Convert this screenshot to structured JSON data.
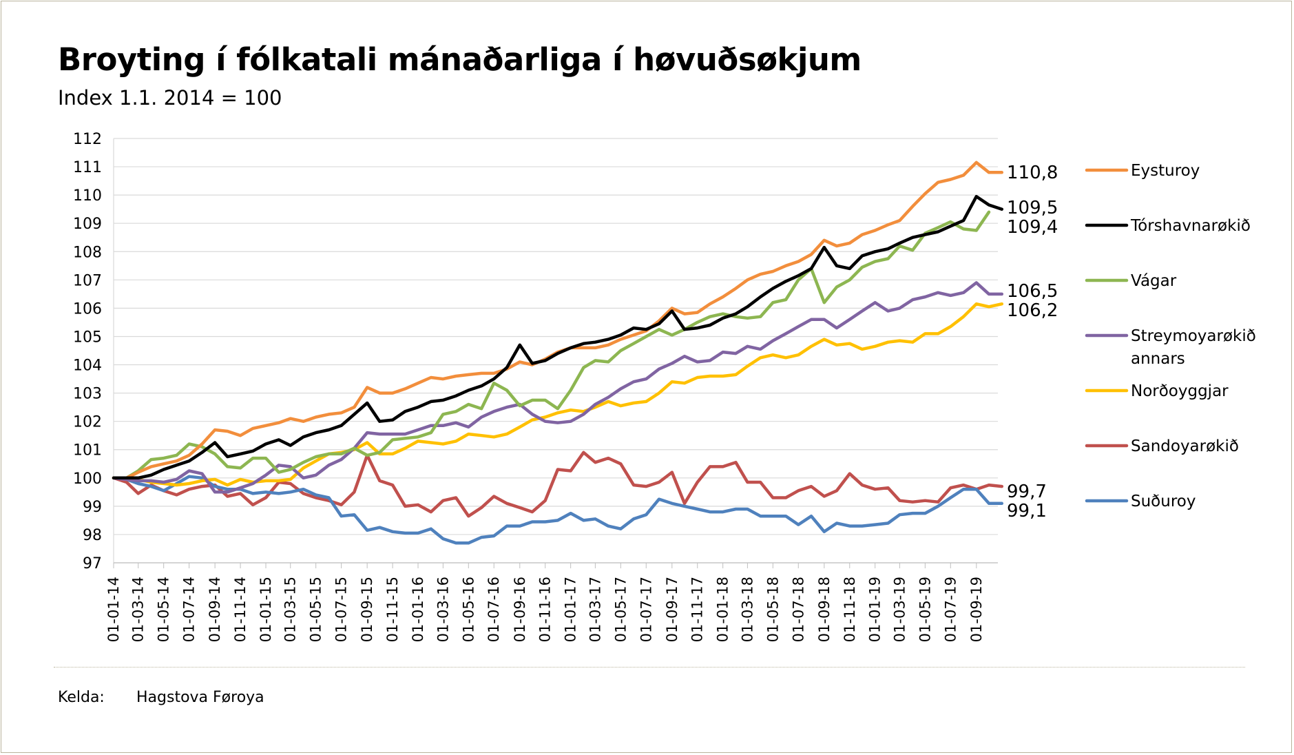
{
  "header": {
    "title": "Broyting í fólkatali mánaðarliga í høvuðsøkjum",
    "subtitle": "Index 1.1. 2014 = 100"
  },
  "footer": {
    "source_label": "Kelda:",
    "source_value": "Hagstova Føroya"
  },
  "chart_data": {
    "type": "line",
    "title": "Broyting í fólkatali mánaðarliga í høvuðsøkjum",
    "subtitle": "Index 1.1. 2014 = 100",
    "xlabel": "",
    "ylabel": "",
    "ylim": [
      97,
      112
    ],
    "y_ticks": [
      "97",
      "98",
      "99",
      "100",
      "101",
      "102",
      "103",
      "104",
      "105",
      "106",
      "107",
      "108",
      "109",
      "110",
      "111",
      "112"
    ],
    "x_tick_labels": [
      "01-01-14",
      "01-03-14",
      "01-05-14",
      "01-07-14",
      "01-09-14",
      "01-11-14",
      "01-01-15",
      "01-03-15",
      "01-05-15",
      "01-07-15",
      "01-09-15",
      "01-11-15",
      "01-01-16",
      "01-03-16",
      "01-05-16",
      "01-07-16",
      "01-09-16",
      "01-11-16",
      "01-01-17",
      "01-03-17",
      "01-05-17",
      "01-07-17",
      "01-09-17",
      "01-11-17",
      "01-01-18",
      "01-03-18",
      "01-05-18",
      "01-07-18",
      "01-09-18",
      "01-11-18",
      "01-01-19",
      "01-03-19",
      "01-05-19",
      "01-07-19",
      "01-09-19"
    ],
    "x_start": "2014-01-01",
    "x_end": "2019-10-01",
    "grid": true,
    "legend_position": "right",
    "series": [
      {
        "name": "Eysturoy",
        "color": "#f28e3c",
        "end_label": "110,8",
        "values": [
          100,
          100,
          100.2,
          100.4,
          100.5,
          100.6,
          100.8,
          101.2,
          101.7,
          101.65,
          101.5,
          101.75,
          101.85,
          101.95,
          102.1,
          102.0,
          102.15,
          102.25,
          102.3,
          102.5,
          103.2,
          103.0,
          103.0,
          103.15,
          103.35,
          103.55,
          103.5,
          103.6,
          103.65,
          103.7,
          103.7,
          103.85,
          104.1,
          104.0,
          104.2,
          104.45,
          104.6,
          104.6,
          104.6,
          104.7,
          104.9,
          105.05,
          105.2,
          105.55,
          106.0,
          105.8,
          105.85,
          106.15,
          106.4,
          106.7,
          107.0,
          107.2,
          107.3,
          107.5,
          107.65,
          107.9,
          108.4,
          108.2,
          108.3,
          108.6,
          108.75,
          108.95,
          109.1,
          109.6,
          110.05,
          110.45,
          110.55,
          110.7,
          111.15,
          110.8,
          110.8
        ]
      },
      {
        "name": "Tórshavnarøkið",
        "color": "#000000",
        "end_label": "109,5",
        "values": [
          100,
          100,
          100,
          100.1,
          100.3,
          100.45,
          100.6,
          100.9,
          101.25,
          100.75,
          100.85,
          100.95,
          101.2,
          101.35,
          101.15,
          101.45,
          101.6,
          101.7,
          101.85,
          102.25,
          102.65,
          102.0,
          102.05,
          102.35,
          102.5,
          102.7,
          102.75,
          102.9,
          103.1,
          103.25,
          103.5,
          103.9,
          104.7,
          104.05,
          104.15,
          104.4,
          104.6,
          104.75,
          104.8,
          104.9,
          105.05,
          105.3,
          105.25,
          105.45,
          105.9,
          105.25,
          105.3,
          105.4,
          105.65,
          105.8,
          106.05,
          106.4,
          106.7,
          106.95,
          107.15,
          107.4,
          108.15,
          107.5,
          107.4,
          107.85,
          108.0,
          108.1,
          108.3,
          108.5,
          108.6,
          108.7,
          108.9,
          109.1,
          109.95,
          109.65,
          109.5
        ]
      },
      {
        "name": "Vágar",
        "color": "#8db651",
        "end_label": "109,4",
        "values": [
          100,
          100,
          100.25,
          100.65,
          100.7,
          100.8,
          101.2,
          101.1,
          100.85,
          100.4,
          100.35,
          100.7,
          100.7,
          100.2,
          100.3,
          100.55,
          100.75,
          100.85,
          100.85,
          101.05,
          100.8,
          100.9,
          101.35,
          101.4,
          101.45,
          101.6,
          102.25,
          102.35,
          102.6,
          102.45,
          103.35,
          103.1,
          102.55,
          102.75,
          102.75,
          102.45,
          103.1,
          103.9,
          104.15,
          104.1,
          104.5,
          104.75,
          105.0,
          105.25,
          105.05,
          105.25,
          105.5,
          105.7,
          105.8,
          105.7,
          105.65,
          105.7,
          106.2,
          106.3,
          107.0,
          107.4,
          106.2,
          106.75,
          107.0,
          107.45,
          107.65,
          107.75,
          108.2,
          108.05,
          108.65,
          108.85,
          109.05,
          108.8,
          108.75,
          109.4
        ]
      },
      {
        "name": "Streymoyarøkið annars",
        "color": "#8064a2",
        "end_label": "106,5",
        "values": [
          100,
          99.95,
          99.9,
          99.9,
          99.85,
          99.95,
          100.25,
          100.15,
          99.5,
          99.5,
          99.65,
          99.8,
          100.1,
          100.45,
          100.4,
          100.0,
          100.1,
          100.45,
          100.65,
          101.05,
          101.6,
          101.55,
          101.55,
          101.55,
          101.7,
          101.85,
          101.85,
          101.95,
          101.8,
          102.15,
          102.35,
          102.5,
          102.6,
          102.25,
          102.0,
          101.95,
          102.0,
          102.25,
          102.6,
          102.85,
          103.15,
          103.4,
          103.5,
          103.85,
          104.05,
          104.3,
          104.1,
          104.15,
          104.45,
          104.4,
          104.65,
          104.55,
          104.85,
          105.1,
          105.35,
          105.6,
          105.6,
          105.3,
          105.6,
          105.9,
          106.2,
          105.9,
          106.0,
          106.3,
          106.4,
          106.55,
          106.45,
          106.55,
          106.9,
          106.5,
          106.5
        ]
      },
      {
        "name": "Norðoyggjar",
        "color": "#ffc000",
        "end_label": "106,2",
        "values": [
          100,
          100,
          99.95,
          99.85,
          99.8,
          99.75,
          99.8,
          99.9,
          99.95,
          99.75,
          99.95,
          99.85,
          99.9,
          99.9,
          99.95,
          100.35,
          100.6,
          100.85,
          100.9,
          101.0,
          101.25,
          100.85,
          100.85,
          101.05,
          101.3,
          101.25,
          101.2,
          101.3,
          101.55,
          101.5,
          101.45,
          101.55,
          101.8,
          102.05,
          102.15,
          102.3,
          102.4,
          102.35,
          102.5,
          102.7,
          102.55,
          102.65,
          102.7,
          103.0,
          103.4,
          103.35,
          103.55,
          103.6,
          103.6,
          103.65,
          103.95,
          104.25,
          104.35,
          104.25,
          104.35,
          104.65,
          104.9,
          104.7,
          104.75,
          104.55,
          104.65,
          104.8,
          104.85,
          104.8,
          105.1,
          105.1,
          105.35,
          105.7,
          106.15,
          106.05,
          106.15
        ]
      },
      {
        "name": "Sandoyarøkið",
        "color": "#c0504d",
        "end_label": "99,7",
        "values": [
          100,
          99.85,
          99.45,
          99.75,
          99.55,
          99.4,
          99.6,
          99.7,
          99.75,
          99.35,
          99.45,
          99.05,
          99.3,
          99.85,
          99.8,
          99.45,
          99.3,
          99.2,
          99.05,
          99.5,
          100.8,
          99.9,
          99.75,
          99.0,
          99.05,
          98.8,
          99.2,
          99.3,
          98.65,
          98.95,
          99.35,
          99.1,
          98.95,
          98.8,
          99.2,
          100.3,
          100.25,
          100.9,
          100.55,
          100.7,
          100.5,
          99.75,
          99.7,
          99.85,
          100.2,
          99.1,
          99.85,
          100.4,
          100.4,
          100.55,
          99.85,
          99.85,
          99.3,
          99.3,
          99.55,
          99.7,
          99.35,
          99.55,
          100.15,
          99.75,
          99.6,
          99.65,
          99.2,
          99.15,
          99.2,
          99.15,
          99.65,
          99.75,
          99.6,
          99.75,
          99.7
        ]
      },
      {
        "name": "Suðuroy",
        "color": "#4f81bd",
        "end_label": "99,1",
        "values": [
          100,
          99.95,
          99.8,
          99.7,
          99.55,
          99.8,
          100.05,
          100.0,
          99.7,
          99.6,
          99.6,
          99.45,
          99.5,
          99.45,
          99.5,
          99.6,
          99.4,
          99.3,
          98.65,
          98.7,
          98.15,
          98.25,
          98.1,
          98.05,
          98.05,
          98.2,
          97.85,
          97.7,
          97.7,
          97.9,
          97.95,
          98.3,
          98.3,
          98.45,
          98.45,
          98.5,
          98.75,
          98.5,
          98.55,
          98.3,
          98.2,
          98.55,
          98.7,
          99.25,
          99.1,
          99.0,
          98.9,
          98.8,
          98.8,
          98.9,
          98.9,
          98.65,
          98.65,
          98.65,
          98.35,
          98.65,
          98.1,
          98.4,
          98.3,
          98.3,
          98.35,
          98.4,
          98.7,
          98.75,
          98.75,
          99.0,
          99.3,
          99.6,
          99.6,
          99.1,
          99.1
        ]
      }
    ]
  }
}
